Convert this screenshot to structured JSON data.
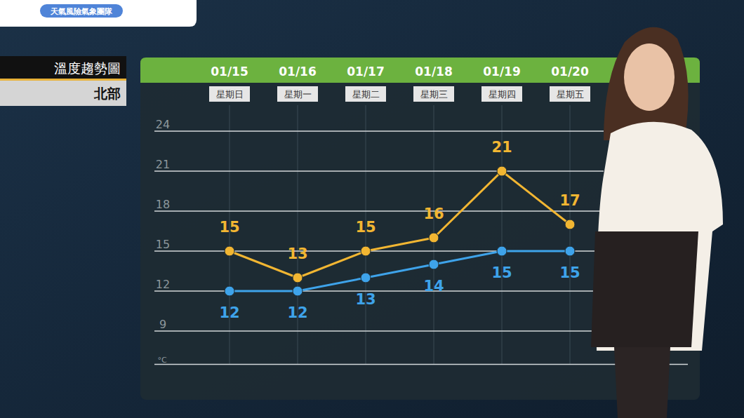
{
  "header": {
    "badge": "天氣風險氣象團隊"
  },
  "chart_data": {
    "type": "line",
    "title": "溫度趨勢圖",
    "subtitle": "北部",
    "categories": [
      "01/15",
      "01/16",
      "01/17",
      "01/18",
      "01/19",
      "01/20"
    ],
    "weekdays": [
      "星期日",
      "星期一",
      "星期二",
      "星期三",
      "星期四",
      "星期五"
    ],
    "series": [
      {
        "color": "#f2b632",
        "values": [
          15,
          13,
          15,
          16,
          21,
          17
        ]
      },
      {
        "color": "#3ea3ea",
        "values": [
          12,
          12,
          13,
          14,
          15,
          15
        ]
      }
    ],
    "ylabel": "°C",
    "ylim": [
      6.5,
      24
    ],
    "yticks": [
      24,
      21,
      18,
      15,
      12,
      9
    ],
    "grid": true,
    "data_labels": true,
    "marker": "circle"
  }
}
